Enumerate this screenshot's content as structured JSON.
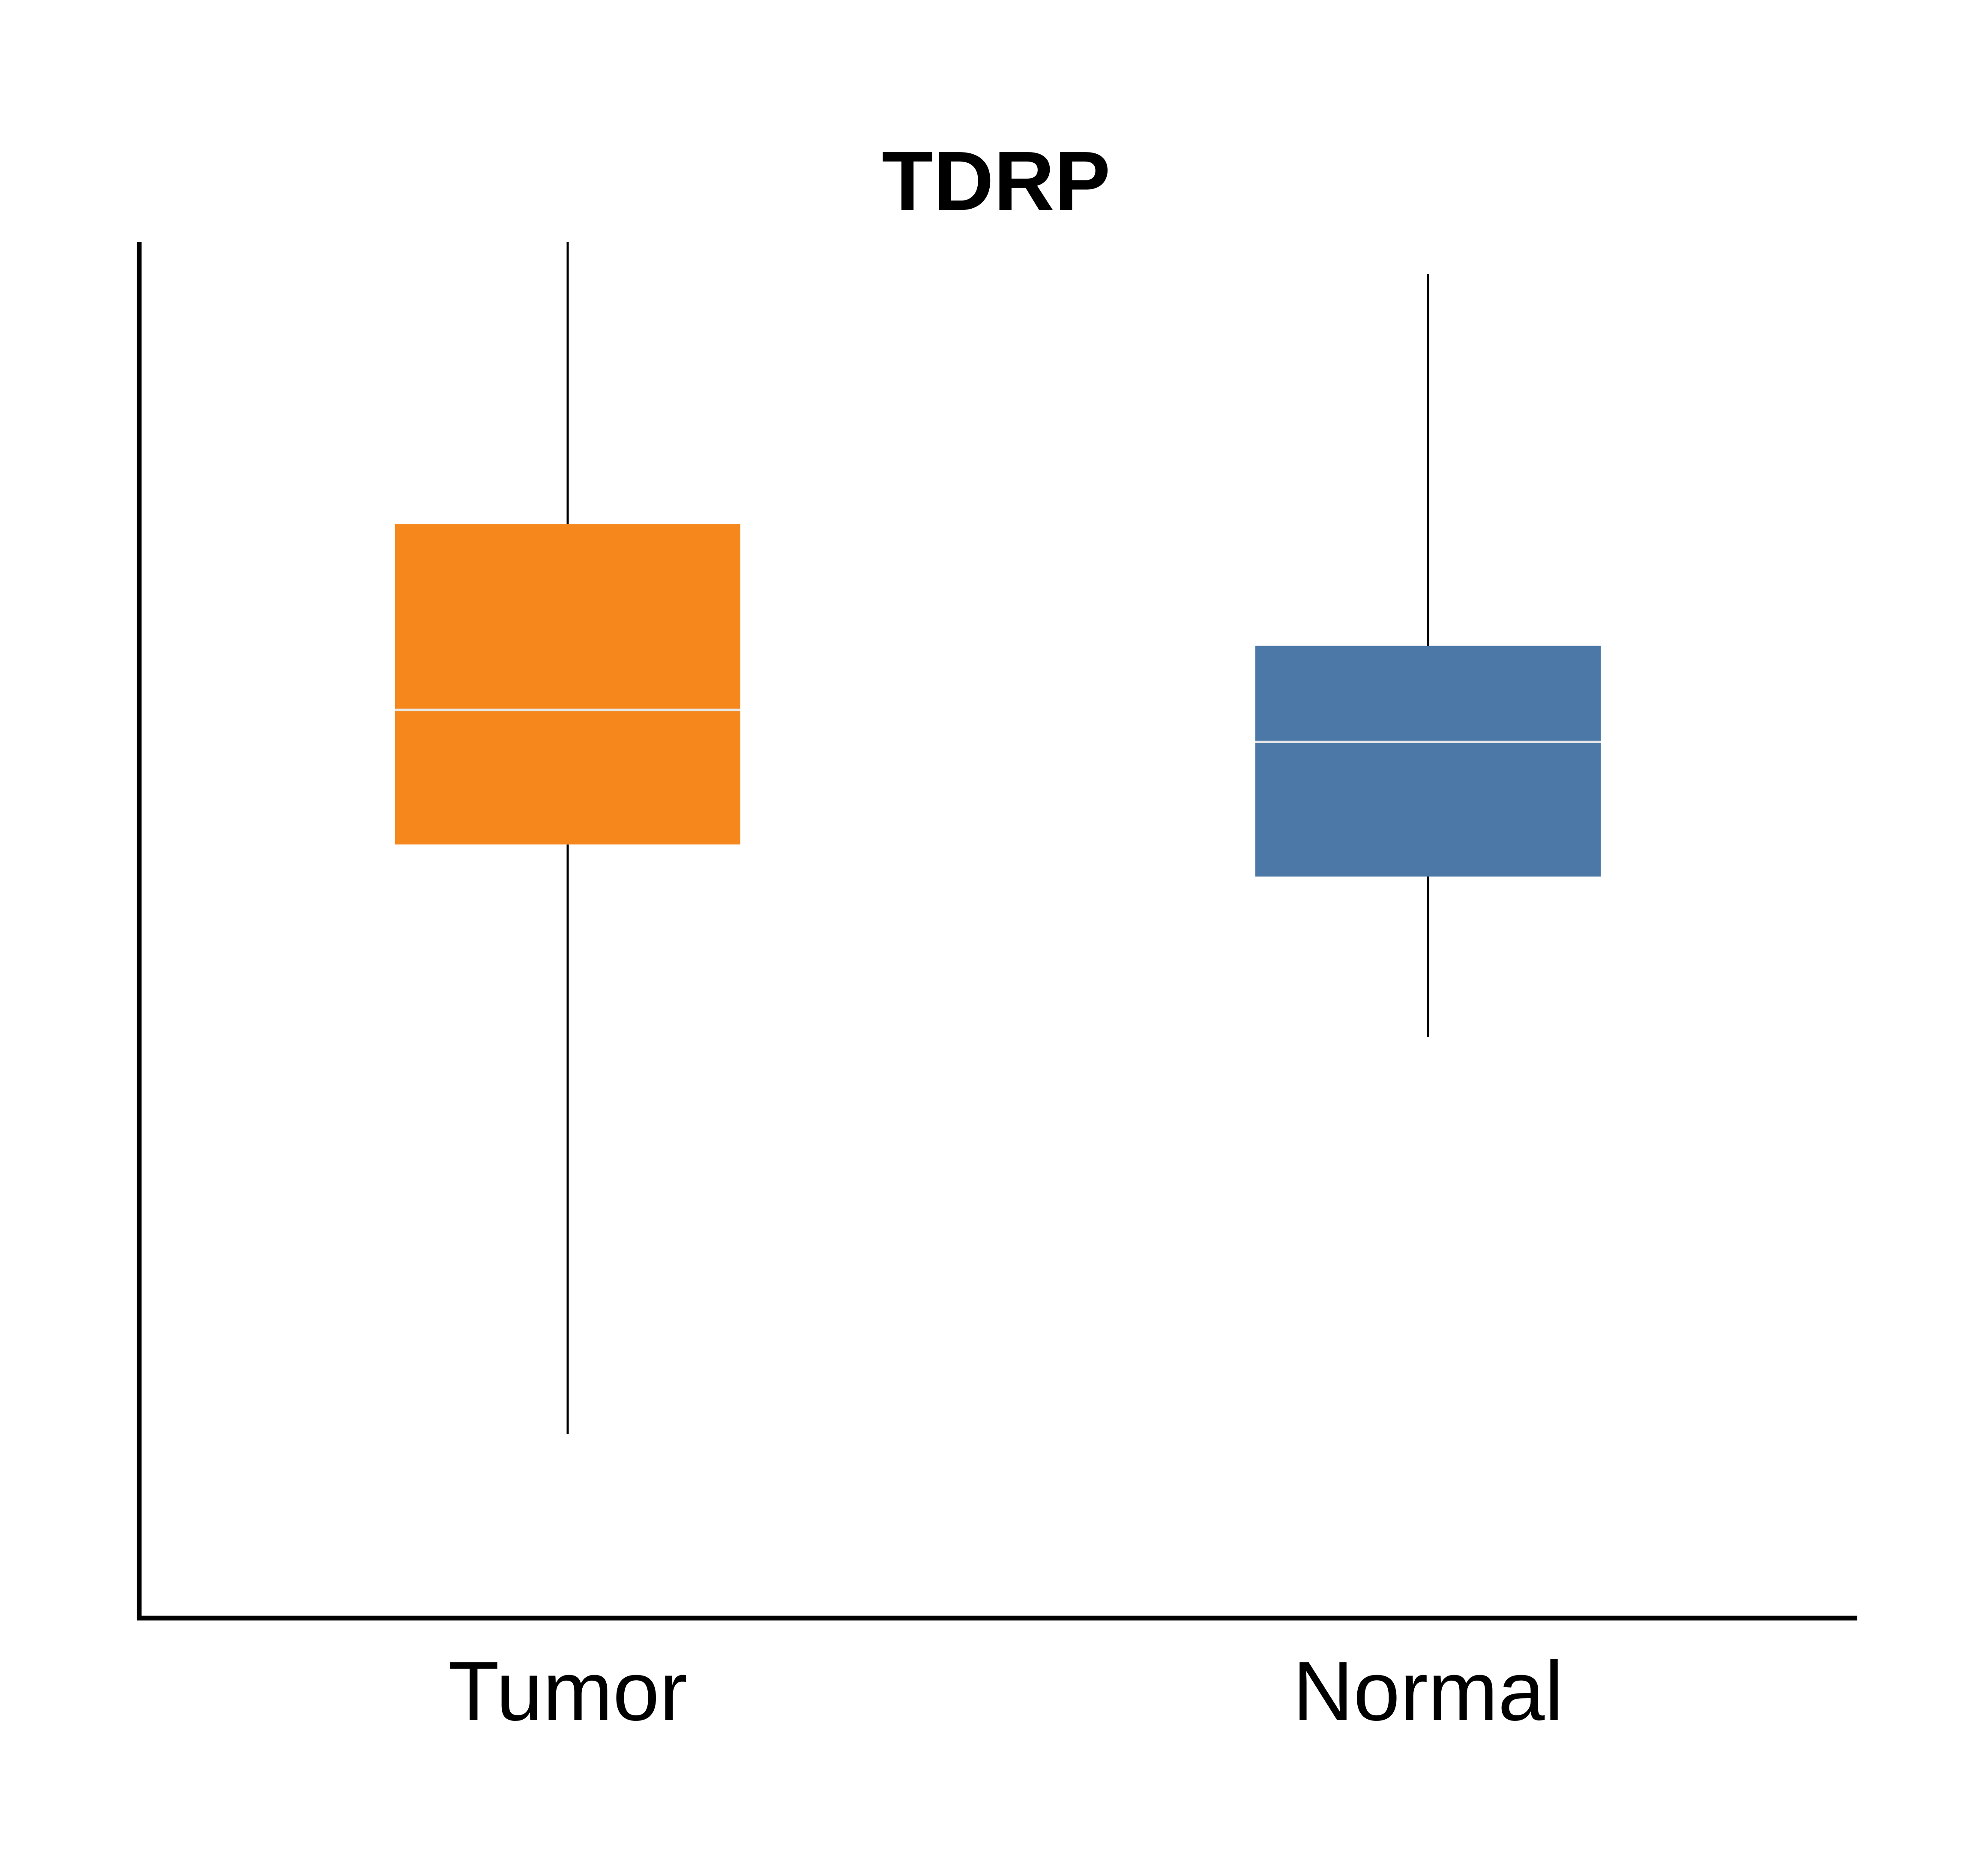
{
  "chart_data": {
    "type": "box",
    "title": "TDRP",
    "xlabel": "",
    "ylabel": "",
    "categories": [
      "Tumor",
      "Normal"
    ],
    "boxes": [
      {
        "category": "Tumor",
        "whisker_low": 0.07,
        "q1": 0.53,
        "median": 0.635,
        "q3": 0.78,
        "whisker_high": 1.0,
        "color": "#F5871C"
      },
      {
        "category": "Normal",
        "whisker_low": 0.38,
        "q1": 0.505,
        "median": 0.61,
        "q3": 0.685,
        "whisker_high": 0.975,
        "color": "#4C78A8"
      }
    ],
    "ylim": [
      0,
      1.0
    ],
    "y_ticks_shown": false,
    "grid": false,
    "median_line_color": "#E8E8E8",
    "whisker_color": "#000000",
    "axis_color": "#000000"
  }
}
